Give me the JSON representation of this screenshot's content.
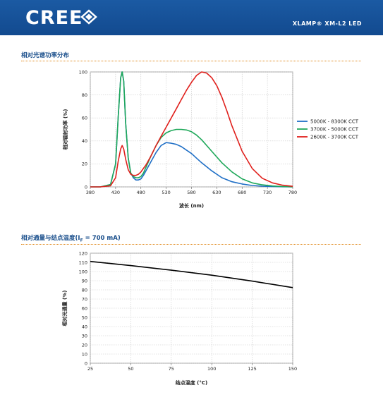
{
  "header": {
    "logo_text": "CREE",
    "product": "XLAMP® XM-L2 LED",
    "color": "#1a5aa3"
  },
  "sections": {
    "spectrum_title": "相对光谱功率分布",
    "flux_title": "相对通量与结点温度(I",
    "flux_title_sub": "F",
    "flux_title_end": " = 700 mA)"
  },
  "chart_data": [
    {
      "type": "line",
      "xlabel": "波长 (nm)",
      "ylabel": "相对辐射功率 (%)",
      "xlim": [
        380,
        780
      ],
      "ylim": [
        0,
        100
      ],
      "x_ticks": [
        380,
        430,
        480,
        530,
        580,
        630,
        680,
        730,
        780
      ],
      "y_ticks": [
        0,
        20,
        40,
        60,
        80,
        100
      ],
      "grid": true,
      "legend": "right",
      "series": [
        {
          "name": "5000K - 8300K CCT",
          "color": "#1f6fc6",
          "x": [
            380,
            400,
            420,
            430,
            435,
            440,
            443,
            446,
            450,
            455,
            460,
            465,
            470,
            475,
            480,
            485,
            490,
            500,
            510,
            520,
            530,
            540,
            550,
            560,
            570,
            580,
            590,
            600,
            620,
            640,
            660,
            680,
            700,
            720,
            740,
            760,
            780
          ],
          "y": [
            0,
            0,
            2,
            20,
            60,
            95,
            100,
            92,
            55,
            25,
            12,
            8,
            6,
            6,
            7,
            10,
            14,
            22,
            30,
            36,
            38.5,
            38,
            37,
            35,
            32,
            29,
            25,
            21,
            14,
            8,
            4.5,
            2.5,
            1.2,
            0.6,
            0.3,
            0.1,
            0
          ]
        },
        {
          "name": "3700K - 5000K CCT",
          "color": "#1fa85a",
          "x": [
            380,
            400,
            420,
            430,
            435,
            440,
            443,
            446,
            450,
            455,
            460,
            465,
            470,
            475,
            480,
            485,
            490,
            500,
            510,
            520,
            530,
            540,
            550,
            560,
            570,
            580,
            590,
            600,
            620,
            640,
            660,
            680,
            700,
            720,
            740,
            760,
            780
          ],
          "y": [
            0,
            0,
            2,
            20,
            60,
            95,
            100,
            92,
            55,
            25,
            12,
            9,
            8,
            8,
            9,
            12,
            17,
            27,
            36,
            43,
            47,
            49,
            50,
            50,
            49.5,
            48,
            45,
            41,
            31,
            21,
            13,
            7,
            3.5,
            1.8,
            0.8,
            0.3,
            0
          ]
        },
        {
          "name": "2600K - 3700K CCT",
          "color": "#e0201c",
          "x": [
            380,
            400,
            420,
            430,
            435,
            440,
            443,
            446,
            450,
            455,
            460,
            465,
            470,
            475,
            480,
            485,
            490,
            500,
            510,
            520,
            530,
            540,
            550,
            560,
            570,
            580,
            590,
            600,
            610,
            620,
            630,
            640,
            650,
            660,
            680,
            700,
            720,
            740,
            760,
            780
          ],
          "y": [
            0,
            0,
            1,
            8,
            22,
            33,
            36,
            33,
            24,
            15,
            11,
            10,
            10,
            11,
            13,
            16,
            19,
            27,
            36,
            44,
            52,
            60,
            68,
            76,
            84,
            91,
            97,
            100,
            99,
            95,
            88,
            78,
            66,
            53,
            31,
            16,
            7.5,
            3.5,
            1.5,
            0.5
          ]
        }
      ]
    },
    {
      "type": "line",
      "xlabel": "结点温度 (°C)",
      "ylabel": "相对光通量 (%)",
      "xlim": [
        25,
        150
      ],
      "ylim": [
        0,
        120
      ],
      "x_ticks": [
        25,
        50,
        75,
        100,
        125,
        150
      ],
      "y_ticks": [
        0,
        10,
        20,
        30,
        40,
        50,
        60,
        70,
        80,
        90,
        100,
        110,
        120
      ],
      "grid": true,
      "series": [
        {
          "color": "#000000",
          "x": [
            25,
            50,
            75,
            100,
            125,
            150
          ],
          "y": [
            111,
            106.5,
            101.5,
            96,
            89.5,
            82.5
          ]
        }
      ]
    }
  ]
}
